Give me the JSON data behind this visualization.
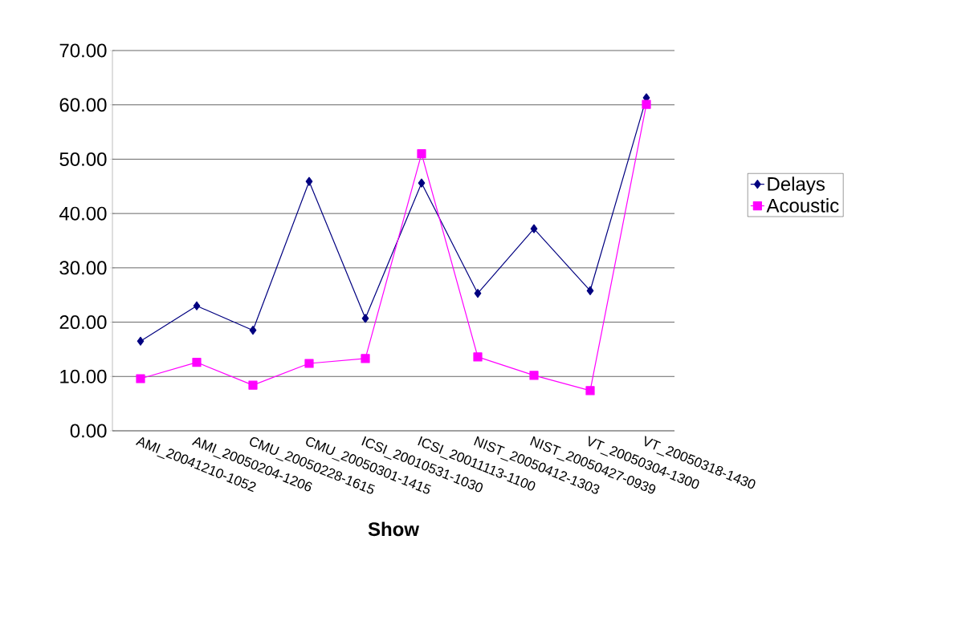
{
  "chart_data": {
    "type": "line",
    "xlabel": "Show",
    "categories": [
      "AMI_20041210-1052",
      "AMI_20050204-1206",
      "CMU_20050228-1615",
      "CMU_20050301-1415",
      "ICSI_20010531-1030",
      "ICSI_20011113-1100",
      "NIST_20050412-1303",
      "NIST_20050427-0939",
      "VT_20050304-1300",
      "VT_20050318-1430"
    ],
    "series": [
      {
        "name": "Delays",
        "color": "#000080",
        "marker": "diamond",
        "values": [
          16.5,
          23.0,
          18.5,
          45.9,
          20.7,
          45.6,
          25.3,
          37.2,
          25.8,
          61.3
        ]
      },
      {
        "name": "Acoustic",
        "color": "#ff00ff",
        "marker": "square",
        "values": [
          9.6,
          12.6,
          8.4,
          12.4,
          13.3,
          51.0,
          13.6,
          10.2,
          7.4,
          60.1
        ]
      }
    ],
    "ylim": [
      0,
      70
    ],
    "yticks": [
      {
        "value": 0,
        "label": "0.00"
      },
      {
        "value": 10,
        "label": "10.00"
      },
      {
        "value": 20,
        "label": "20.00"
      },
      {
        "value": 30,
        "label": "30.00"
      },
      {
        "value": 40,
        "label": "40.00"
      },
      {
        "value": 50,
        "label": "50.00"
      },
      {
        "value": 60,
        "label": "60.00"
      },
      {
        "value": 70,
        "label": "70.00"
      }
    ],
    "grid": "y",
    "legend": "right",
    "line_style": "solid"
  }
}
